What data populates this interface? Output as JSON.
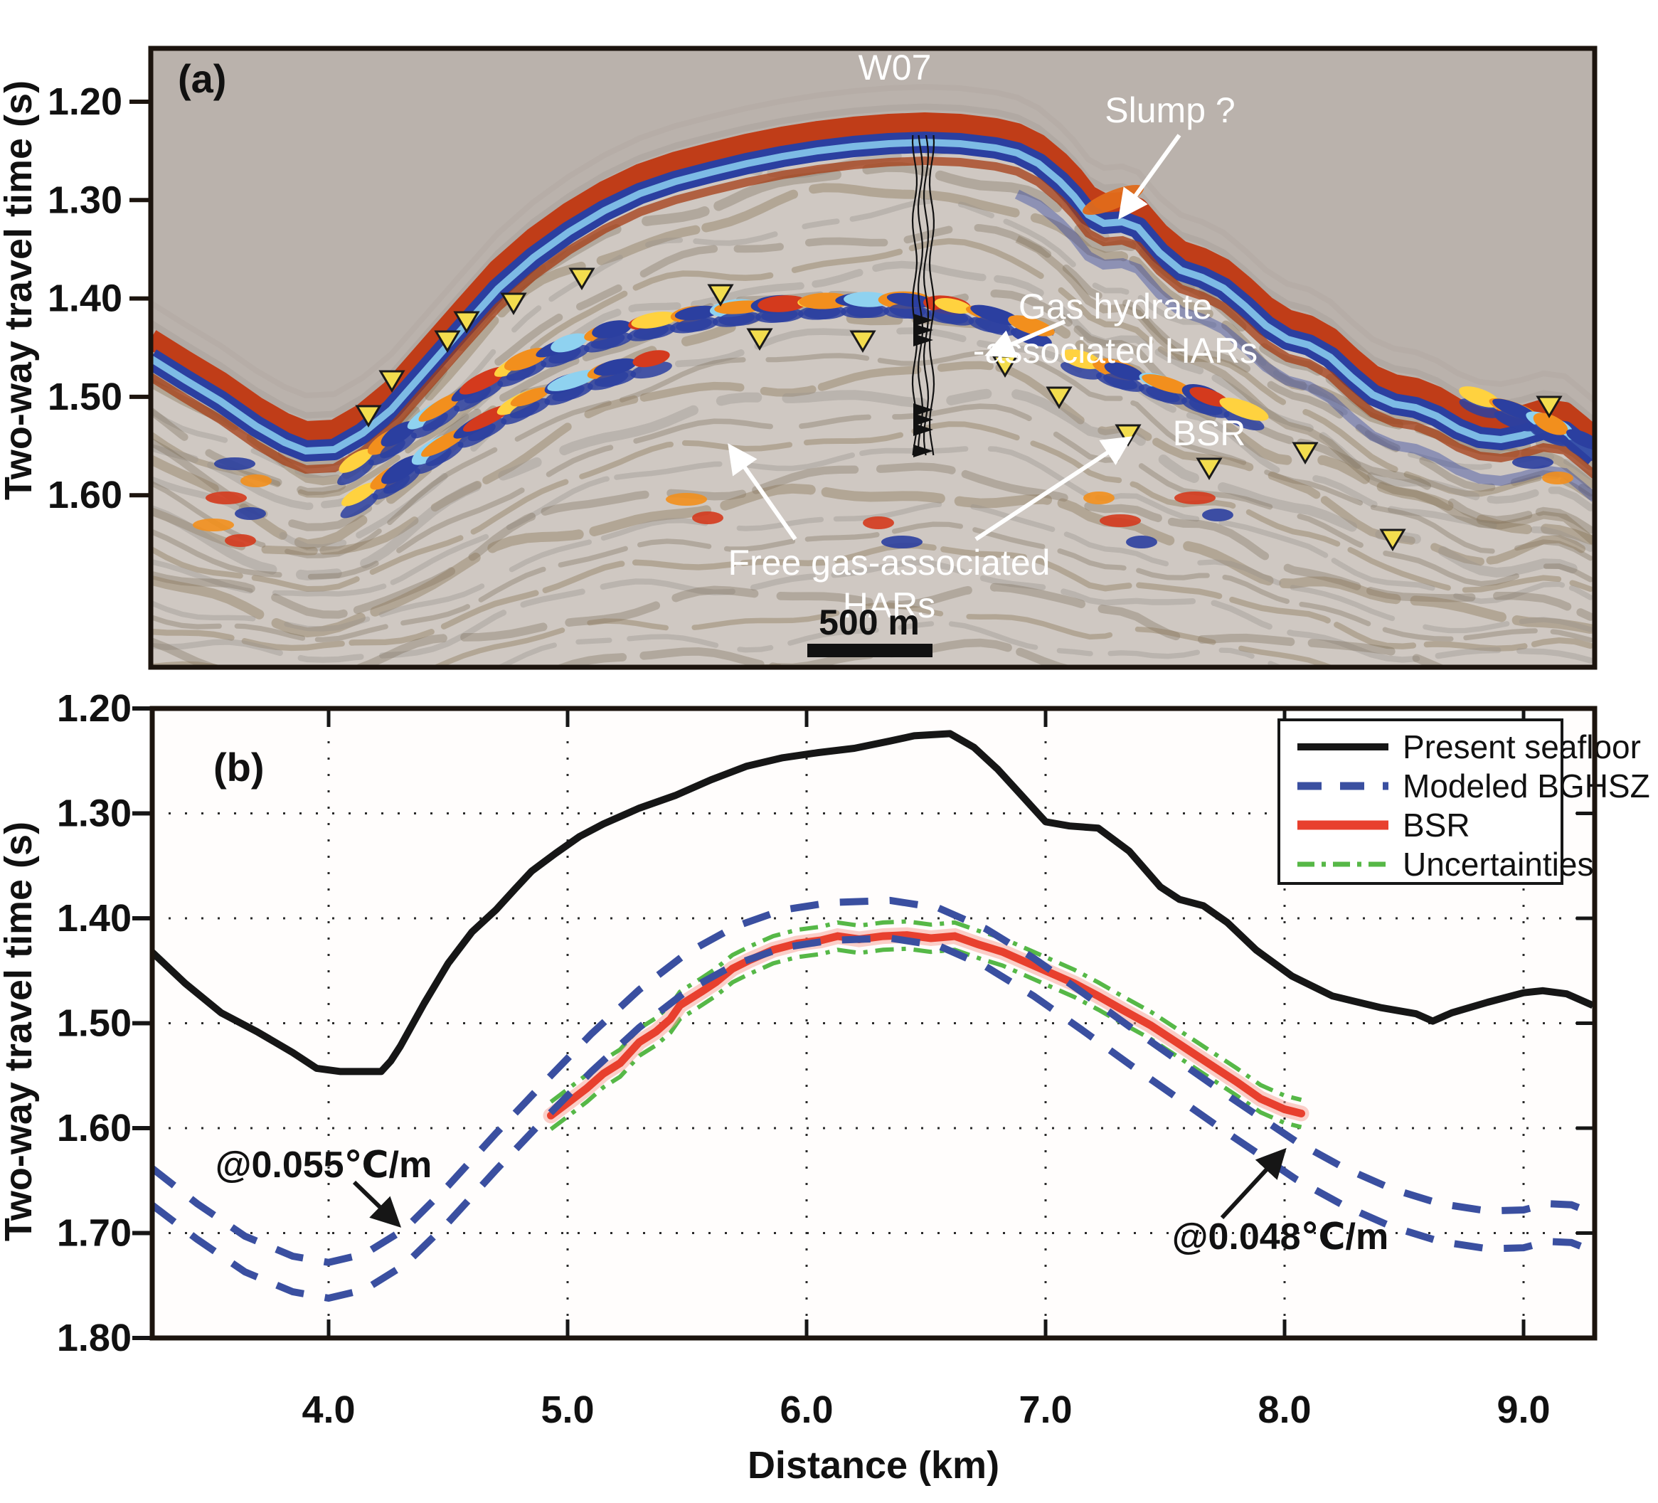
{
  "panel_a": {
    "label": "(a)",
    "y_axis": {
      "title": "Two-way travel time (s)",
      "tick_labels": [
        "1.20",
        "1.30",
        "1.40",
        "1.50",
        "1.60"
      ],
      "tick_values": [
        1.2,
        1.3,
        1.4,
        1.5,
        1.6
      ]
    },
    "annotations": {
      "well": "W07",
      "slump": "Slump ?",
      "gas_hydrate_line1": "Gas hydrate",
      "gas_hydrate_line2": "-associated HARs",
      "bsr": "BSR",
      "free_gas_line1": "Free gas-associated",
      "free_gas_line2": "HARs"
    },
    "scale_bar": {
      "label": "500 m",
      "length_m": 500
    },
    "bsr_marker_positions": [
      [
        518,
        598
      ],
      [
        551,
        549
      ],
      [
        629,
        493
      ],
      [
        656,
        466
      ],
      [
        722,
        440
      ],
      [
        818,
        405
      ],
      [
        1013,
        428
      ],
      [
        1068,
        490
      ],
      [
        1213,
        493
      ],
      [
        1413,
        528
      ],
      [
        1489,
        572
      ],
      [
        1586,
        625
      ],
      [
        1700,
        672
      ],
      [
        1835,
        650
      ],
      [
        1958,
        772
      ],
      [
        2178,
        585
      ]
    ],
    "colors": {
      "water": "#bab2ac",
      "sediment": "#cfc8c2",
      "reflection_red": "#c03d18",
      "reflection_blue": "#2b3fa0",
      "reflection_lightblue": "#86c9ec",
      "har_yellow": "#ffd23f",
      "har_orange": "#f28f1d",
      "har_red": "#d43a1d",
      "har_cyan": "#8fd2f0",
      "triangle": "#f3dd4e",
      "annotation_text": "#ffffff"
    }
  },
  "panel_b": {
    "label": "(b)",
    "x_axis": {
      "title": "Distance (km)",
      "tick_labels": [
        "4.0",
        "5.0",
        "6.0",
        "7.0",
        "8.0",
        "9.0"
      ],
      "tick_values": [
        4,
        5,
        6,
        7,
        8,
        9
      ],
      "range": [
        3.26,
        9.29
      ]
    },
    "y_axis": {
      "title": "Two-way travel time (s)",
      "tick_labels": [
        "1.20",
        "1.30",
        "1.40",
        "1.50",
        "1.60",
        "1.70",
        "1.80"
      ],
      "tick_values": [
        1.2,
        1.3,
        1.4,
        1.5,
        1.6,
        1.7,
        1.8
      ],
      "range": [
        1.2,
        1.8
      ]
    },
    "legend": {
      "position": "top-right",
      "entries": [
        {
          "label": "Present seafloor",
          "style": "solid",
          "color": "#161616"
        },
        {
          "label": "Modeled BGHSZ",
          "style": "dashed",
          "color": "#3a4fa0"
        },
        {
          "label": "BSR",
          "style": "solid",
          "color": "#e8402e"
        },
        {
          "label": "Uncertainties",
          "style": "dash-dot",
          "color": "#56b847"
        }
      ]
    },
    "annotations": [
      {
        "text": "@0.055℃/m",
        "side": "left"
      },
      {
        "text": "@0.048℃/m",
        "side": "right"
      }
    ]
  },
  "chart_data": {
    "type": "line",
    "title": "",
    "xlabel": "Distance (km)",
    "ylabel": "Two-way travel time (s)",
    "xlim": [
      3.26,
      9.29
    ],
    "ylim": [
      1.8,
      1.2
    ],
    "grid": "dotted",
    "legend_position": "top-right",
    "uncertainty_offset_s": 0.013,
    "series": [
      {
        "name": "Present seafloor",
        "color": "#161616",
        "style": "solid",
        "points": [
          [
            3.26,
            1.432
          ],
          [
            3.4,
            1.462
          ],
          [
            3.55,
            1.49
          ],
          [
            3.7,
            1.508
          ],
          [
            3.85,
            1.528
          ],
          [
            3.95,
            1.543
          ],
          [
            4.05,
            1.546
          ],
          [
            4.22,
            1.546
          ],
          [
            4.26,
            1.536
          ],
          [
            4.3,
            1.522
          ],
          [
            4.4,
            1.481
          ],
          [
            4.5,
            1.443
          ],
          [
            4.6,
            1.413
          ],
          [
            4.7,
            1.392
          ],
          [
            4.78,
            1.372
          ],
          [
            4.85,
            1.355
          ],
          [
            4.95,
            1.338
          ],
          [
            5.05,
            1.322
          ],
          [
            5.15,
            1.31
          ],
          [
            5.3,
            1.295
          ],
          [
            5.45,
            1.283
          ],
          [
            5.6,
            1.268
          ],
          [
            5.75,
            1.255
          ],
          [
            5.9,
            1.247
          ],
          [
            6.05,
            1.242
          ],
          [
            6.2,
            1.238
          ],
          [
            6.35,
            1.231
          ],
          [
            6.45,
            1.226
          ],
          [
            6.6,
            1.224
          ],
          [
            6.7,
            1.237
          ],
          [
            6.8,
            1.258
          ],
          [
            6.9,
            1.283
          ],
          [
            7.0,
            1.308
          ],
          [
            7.1,
            1.312
          ],
          [
            7.22,
            1.314
          ],
          [
            7.35,
            1.336
          ],
          [
            7.48,
            1.37
          ],
          [
            7.56,
            1.382
          ],
          [
            7.66,
            1.388
          ],
          [
            7.76,
            1.404
          ],
          [
            7.88,
            1.43
          ],
          [
            8.03,
            1.455
          ],
          [
            8.2,
            1.474
          ],
          [
            8.4,
            1.485
          ],
          [
            8.55,
            1.491
          ],
          [
            8.62,
            1.498
          ],
          [
            8.7,
            1.49
          ],
          [
            8.85,
            1.48
          ],
          [
            9.0,
            1.471
          ],
          [
            9.08,
            1.469
          ],
          [
            9.18,
            1.472
          ],
          [
            9.29,
            1.483
          ]
        ]
      },
      {
        "name": "Modeled BGHSZ (upper bound)",
        "color": "#3a4fa0",
        "style": "dashed",
        "points": [
          [
            3.26,
            1.638
          ],
          [
            3.45,
            1.672
          ],
          [
            3.65,
            1.703
          ],
          [
            3.85,
            1.722
          ],
          [
            4.0,
            1.728
          ],
          [
            4.15,
            1.72
          ],
          [
            4.32,
            1.696
          ],
          [
            4.5,
            1.655
          ],
          [
            4.7,
            1.605
          ],
          [
            4.9,
            1.557
          ],
          [
            5.1,
            1.51
          ],
          [
            5.3,
            1.468
          ],
          [
            5.5,
            1.433
          ],
          [
            5.7,
            1.408
          ],
          [
            5.9,
            1.392
          ],
          [
            6.1,
            1.385
          ],
          [
            6.35,
            1.383
          ],
          [
            6.55,
            1.39
          ],
          [
            6.75,
            1.41
          ],
          [
            6.95,
            1.438
          ],
          [
            7.15,
            1.47
          ],
          [
            7.35,
            1.503
          ],
          [
            7.55,
            1.535
          ],
          [
            7.75,
            1.567
          ],
          [
            7.9,
            1.59
          ],
          [
            8.05,
            1.613
          ],
          [
            8.25,
            1.638
          ],
          [
            8.45,
            1.658
          ],
          [
            8.65,
            1.672
          ],
          [
            8.85,
            1.679
          ],
          [
            9.0,
            1.678
          ],
          [
            9.1,
            1.672
          ],
          [
            9.2,
            1.673
          ],
          [
            9.29,
            1.681
          ]
        ]
      },
      {
        "name": "Modeled BGHSZ (lower bound)",
        "color": "#3a4fa0",
        "style": "dashed",
        "points": [
          [
            3.26,
            1.673
          ],
          [
            3.45,
            1.706
          ],
          [
            3.65,
            1.737
          ],
          [
            3.85,
            1.756
          ],
          [
            4.0,
            1.762
          ],
          [
            4.15,
            1.754
          ],
          [
            4.32,
            1.73
          ],
          [
            4.5,
            1.69
          ],
          [
            4.7,
            1.64
          ],
          [
            4.9,
            1.592
          ],
          [
            5.1,
            1.546
          ],
          [
            5.3,
            1.504
          ],
          [
            5.5,
            1.469
          ],
          [
            5.7,
            1.444
          ],
          [
            5.9,
            1.428
          ],
          [
            6.1,
            1.421
          ],
          [
            6.35,
            1.419
          ],
          [
            6.55,
            1.426
          ],
          [
            6.75,
            1.446
          ],
          [
            6.95,
            1.474
          ],
          [
            7.15,
            1.506
          ],
          [
            7.35,
            1.539
          ],
          [
            7.55,
            1.571
          ],
          [
            7.75,
            1.603
          ],
          [
            7.9,
            1.626
          ],
          [
            8.05,
            1.649
          ],
          [
            8.25,
            1.674
          ],
          [
            8.45,
            1.694
          ],
          [
            8.65,
            1.708
          ],
          [
            8.85,
            1.715
          ],
          [
            9.0,
            1.714
          ],
          [
            9.1,
            1.708
          ],
          [
            9.2,
            1.709
          ],
          [
            9.29,
            1.717
          ]
        ]
      },
      {
        "name": "BSR",
        "color": "#e8402e",
        "style": "solid",
        "points": [
          [
            4.93,
            1.588
          ],
          [
            5.0,
            1.576
          ],
          [
            5.08,
            1.562
          ],
          [
            5.15,
            1.548
          ],
          [
            5.22,
            1.538
          ],
          [
            5.3,
            1.518
          ],
          [
            5.37,
            1.508
          ],
          [
            5.43,
            1.496
          ],
          [
            5.47,
            1.483
          ],
          [
            5.56,
            1.47
          ],
          [
            5.62,
            1.461
          ],
          [
            5.69,
            1.448
          ],
          [
            5.76,
            1.44
          ],
          [
            5.86,
            1.43
          ],
          [
            5.96,
            1.424
          ],
          [
            6.06,
            1.421
          ],
          [
            6.13,
            1.417
          ],
          [
            6.22,
            1.42
          ],
          [
            6.32,
            1.417
          ],
          [
            6.42,
            1.416
          ],
          [
            6.52,
            1.419
          ],
          [
            6.62,
            1.417
          ],
          [
            6.72,
            1.425
          ],
          [
            6.82,
            1.432
          ],
          [
            6.92,
            1.442
          ],
          [
            7.02,
            1.452
          ],
          [
            7.12,
            1.462
          ],
          [
            7.22,
            1.474
          ],
          [
            7.32,
            1.487
          ],
          [
            7.44,
            1.502
          ],
          [
            7.56,
            1.52
          ],
          [
            7.68,
            1.538
          ],
          [
            7.8,
            1.556
          ],
          [
            7.9,
            1.572
          ],
          [
            8.0,
            1.582
          ],
          [
            8.07,
            1.586
          ]
        ]
      },
      {
        "name": "Uncertainties",
        "color": "#56b847",
        "style": "dash-dot",
        "derived": "BSR ± 0.013 s"
      }
    ]
  }
}
